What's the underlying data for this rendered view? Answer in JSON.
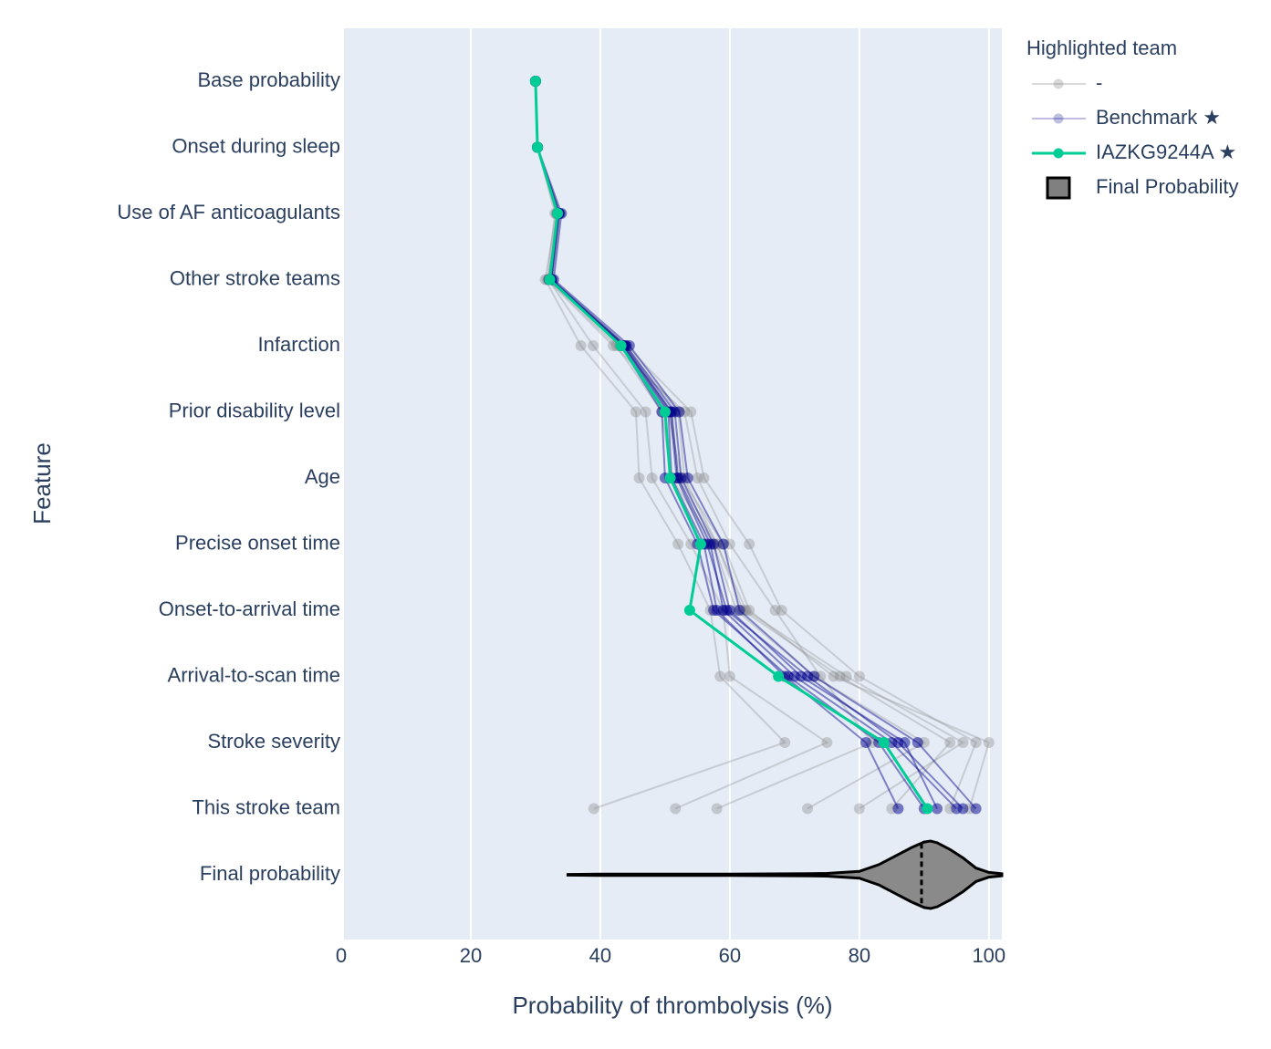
{
  "chart_data": {
    "type": "line",
    "x_label": "Probability of thrombolysis (%)",
    "y_label": "Feature",
    "categories": [
      "Base probability",
      "Onset during sleep",
      "Use of AF anticoagulants",
      "Other stroke teams",
      "Infarction",
      "Prior disability level",
      "Age",
      "Precise onset time",
      "Onset-to-arrival time",
      "Arrival-to-scan time",
      "Stroke severity",
      "This stroke team",
      "Final probability"
    ],
    "xlim": [
      0,
      102
    ],
    "xticks": [
      0,
      20,
      40,
      60,
      80,
      100
    ],
    "grid": true,
    "legend_title": "Highlighted team",
    "legend_position": "right",
    "series": [
      {
        "name": "-",
        "color": "#808080",
        "lines": [
          [
            30,
            30.3,
            33.2,
            31.5,
            37,
            45.5,
            46,
            52,
            57,
            58.5,
            68.5,
            39
          ],
          [
            30,
            30.3,
            33.5,
            32,
            38.9,
            47,
            48,
            54,
            59,
            60,
            75,
            51.6
          ],
          [
            30,
            30.3,
            33,
            31.8,
            42,
            53,
            55,
            60,
            67,
            74,
            82,
            58
          ],
          [
            30,
            30.3,
            33.8,
            32.5,
            44,
            54,
            56,
            63,
            68,
            80,
            98,
            94
          ],
          [
            30,
            30.3,
            33.4,
            32.3,
            43.5,
            51,
            52,
            58,
            62,
            77,
            94,
            85
          ],
          [
            30,
            30.3,
            33.6,
            32.4,
            43,
            50.5,
            52.5,
            59,
            63,
            76,
            100,
            97
          ],
          [
            30,
            30.3,
            33.3,
            32,
            42.5,
            49.5,
            51,
            57.5,
            61,
            73,
            90,
            72
          ],
          [
            30,
            30.3,
            33.5,
            32.2,
            43.8,
            52,
            53,
            58,
            62.5,
            78,
            96,
            80
          ]
        ]
      },
      {
        "name": "Benchmark ★",
        "color": "#00008b",
        "lines": [
          [
            30,
            30.3,
            33.5,
            32.3,
            43.5,
            50.5,
            51,
            56,
            58,
            68.5,
            81,
            86
          ],
          [
            30,
            30.3,
            33.7,
            32.5,
            44,
            51.5,
            52.5,
            57.5,
            60,
            71,
            87,
            92
          ],
          [
            30,
            30.3,
            33.6,
            32.4,
            43.8,
            51,
            52,
            57,
            59,
            70,
            85,
            95
          ],
          [
            30,
            30.3,
            33.4,
            32.1,
            43.2,
            49.5,
            50,
            55,
            57.5,
            69,
            83,
            90
          ],
          [
            30,
            30.3,
            34,
            32.8,
            44.5,
            52.2,
            53.5,
            59,
            61.5,
            73,
            89,
            98
          ],
          [
            30,
            30.3,
            33.5,
            32.3,
            43.6,
            50.8,
            51.8,
            56.5,
            59.5,
            72,
            86,
            96
          ]
        ]
      },
      {
        "name": "IAZKG9244A ★",
        "color": "#00cc96",
        "lines": [
          [
            30,
            30.3,
            33.4,
            32.2,
            43.2,
            50,
            50.8,
            55.5,
            53.8,
            67.5,
            83.8,
            90.5
          ]
        ]
      }
    ],
    "violin": {
      "name": "Final Probability",
      "color": "#808080",
      "x": [
        35,
        40,
        50,
        60,
        70,
        75,
        80,
        83,
        86,
        88,
        90,
        91,
        92,
        94,
        96,
        98,
        100,
        102
      ],
      "width": [
        0.01,
        0.02,
        0.02,
        0.02,
        0.03,
        0.04,
        0.1,
        0.3,
        0.6,
        0.8,
        0.97,
        1,
        0.95,
        0.75,
        0.5,
        0.2,
        0.07,
        0.03
      ],
      "median": 89.6
    }
  }
}
